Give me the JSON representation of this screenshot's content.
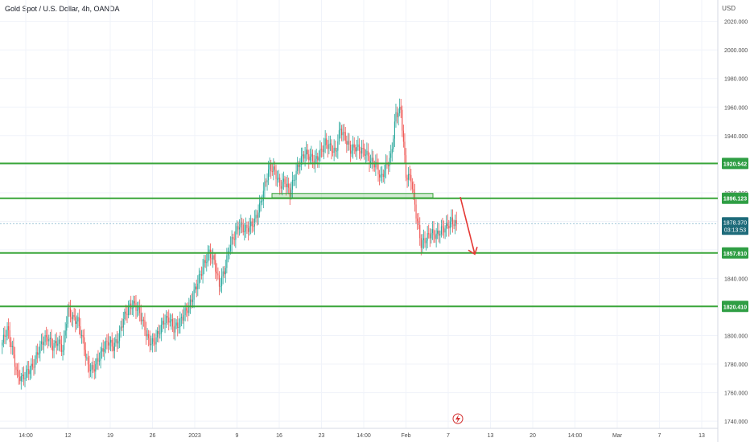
{
  "header": {
    "title": "Gold Spot / U.S. Dollar, 4h, OANDA",
    "currency": "USD"
  },
  "colors": {
    "up": "#26a69a",
    "down": "#ef5350",
    "level_line": "#3aa63a",
    "level_label_bg": "#2f9e44",
    "current_label_bg": "#1e6b7a",
    "arrow": "#e53935",
    "grid": "#f0f3fa",
    "axis_text": "#4a4a4a"
  },
  "chart_data": {
    "type": "candlestick",
    "symbol": "XAUUSD",
    "timeframe": "4h",
    "ylim": [
      1735,
      2035
    ],
    "y_ticks": [
      1740,
      1760,
      1780,
      1800,
      1820,
      1840,
      1860,
      1880,
      1900,
      1920,
      1940,
      1960,
      1980,
      2000,
      2020
    ],
    "y_tick_labels": [
      "1740.000",
      "1760.000",
      "1780.000",
      "1800.000",
      "1820.000",
      "1840.000",
      "1860.000",
      "1880.000",
      "1900.000",
      "1920.000",
      "1940.000",
      "1960.000",
      "1980.000",
      "2000.000",
      "2020.000"
    ],
    "x_labels": [
      "14:00",
      "12",
      "19",
      "26",
      "2023",
      "9",
      "16",
      "23",
      "14:00",
      "Feb",
      "7",
      "13",
      "20",
      "14:00",
      "Mar",
      "7",
      "13"
    ],
    "grid": true,
    "price_levels": [
      {
        "label": "1920.542",
        "value": 1920.542
      },
      {
        "label": "1896.123",
        "value": 1896.123
      },
      {
        "label": "1857.810",
        "value": 1857.81
      },
      {
        "label": "1820.410",
        "value": 1820.41
      }
    ],
    "current_price": {
      "value": 1878.37,
      "label": "1878.370",
      "countdown": "03:13:53"
    },
    "zone": {
      "from": 1896.5,
      "to": 1899.5
    },
    "arrow_projection": {
      "from": 1897,
      "to": 1857
    },
    "close_path": [
      1795,
      1805,
      1790,
      1772,
      1770,
      1775,
      1778,
      1788,
      1796,
      1799,
      1792,
      1796,
      1790,
      1818,
      1812,
      1810,
      1796,
      1778,
      1776,
      1783,
      1791,
      1796,
      1792,
      1798,
      1812,
      1819,
      1822,
      1818,
      1808,
      1796,
      1795,
      1802,
      1810,
      1812,
      1805,
      1808,
      1815,
      1820,
      1830,
      1840,
      1850,
      1858,
      1852,
      1835,
      1845,
      1862,
      1870,
      1878,
      1874,
      1876,
      1880,
      1890,
      1905,
      1918,
      1915,
      1905,
      1908,
      1900,
      1912,
      1922,
      1928,
      1925,
      1922,
      1928,
      1935,
      1932,
      1928,
      1945,
      1938,
      1930,
      1932,
      1930,
      1928,
      1922,
      1920,
      1910,
      1918,
      1925,
      1955,
      1958,
      1912,
      1910,
      1885,
      1864,
      1868,
      1872,
      1870,
      1874,
      1876,
      1880,
      1878
    ]
  }
}
